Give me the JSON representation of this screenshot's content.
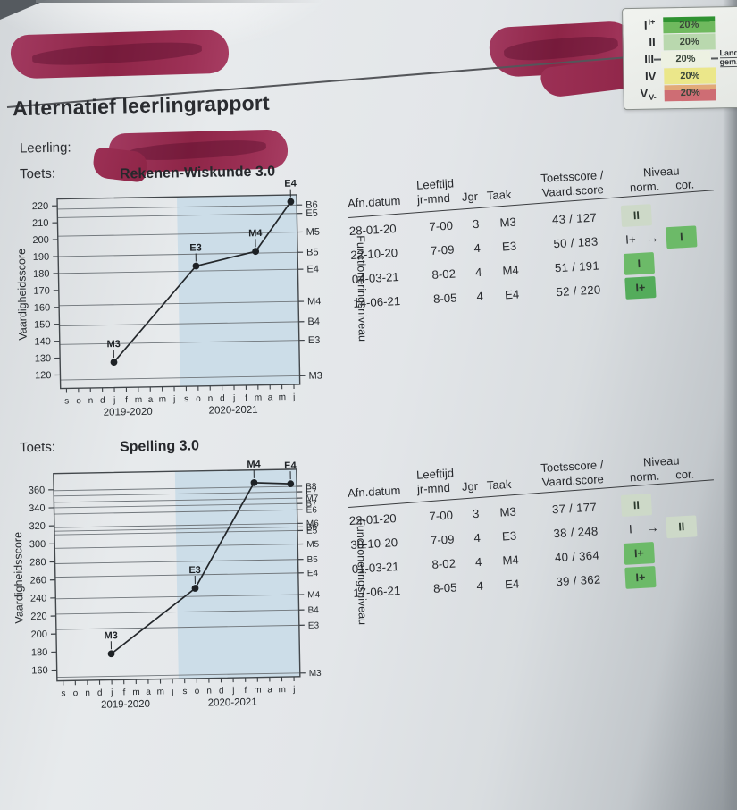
{
  "page": {
    "title": "Alternatief leerlingrapport",
    "leerling_label": "Leerling:",
    "toets_label": "Toets:"
  },
  "glyphs": {
    "cor_arrow": "→"
  },
  "legend": {
    "rows": [
      {
        "label": "I",
        "tag": "I+",
        "tag_pos": "sup",
        "pct": "20%",
        "color": "#6fb95e",
        "color_top": "#2f9231"
      },
      {
        "label": "II",
        "tag": "",
        "tag_pos": "",
        "pct": "20%",
        "color": "#b9d8ae"
      },
      {
        "label": "III",
        "tag": "",
        "tag_pos": "",
        "pct": "20%",
        "color": "#edf1e2",
        "side": [
          "Land",
          "gem."
        ]
      },
      {
        "label": "IV",
        "tag": "",
        "tag_pos": "",
        "pct": "20%",
        "color": "#ebe78a"
      },
      {
        "label": "V",
        "tag": "V-",
        "tag_pos": "sub",
        "pct": "20%",
        "color": "#ce6d74",
        "color_top": "#e2aa79"
      }
    ]
  },
  "table_headers": {
    "afn": "Afn.datum",
    "leeftijd_top": "Leeftijd",
    "leeftijd": "jr-mnd",
    "jgr": "Jgr",
    "taak": "Taak",
    "score_top": "Toetsscore /",
    "score": "Vaard.score",
    "niveau_top": "Niveau",
    "niveau_norm": "norm.",
    "niveau_cor": "cor."
  },
  "badge_colors": {
    "pale": "#cdd9c8",
    "green": "#6cba68",
    "dark": "#54ac5b"
  },
  "tables": [
    {
      "rows": [
        {
          "afn": "28-01-20",
          "leeftijd": "7-00",
          "jgr": "3",
          "taak": "M3",
          "score": "43 / 127",
          "niveau": {
            "badge": "II",
            "style": "pale"
          },
          "cor": null
        },
        {
          "afn": "22-10-20",
          "leeftijd": "7-09",
          "jgr": "4",
          "taak": "E3",
          "score": "50 / 183",
          "niveau": {
            "text": "I+"
          },
          "cor": {
            "badge": "I",
            "style": "green"
          }
        },
        {
          "afn": "04-03-21",
          "leeftijd": "8-02",
          "jgr": "4",
          "taak": "M4",
          "score": "51 / 191",
          "niveau": {
            "badge": "I",
            "style": "green"
          },
          "cor": null
        },
        {
          "afn": "14-06-21",
          "leeftijd": "8-05",
          "jgr": "4",
          "taak": "E4",
          "score": "52 / 220",
          "niveau": {
            "badge": "I+",
            "style": "dark"
          },
          "cor": null
        }
      ]
    },
    {
      "rows": [
        {
          "afn": "22-01-20",
          "leeftijd": "7-00",
          "jgr": "3",
          "taak": "M3",
          "score": "37 / 177",
          "niveau": {
            "badge": "II",
            "style": "pale"
          },
          "cor": null
        },
        {
          "afn": "30-10-20",
          "leeftijd": "7-09",
          "jgr": "4",
          "taak": "E3",
          "score": "38 / 248",
          "niveau": {
            "text": "I"
          },
          "cor": {
            "badge": "II",
            "style": "pale"
          }
        },
        {
          "afn": "01-03-21",
          "leeftijd": "8-02",
          "jgr": "4",
          "taak": "M4",
          "score": "40 / 364",
          "niveau": {
            "badge": "I+",
            "style": "green"
          },
          "cor": null
        },
        {
          "afn": "17-06-21",
          "leeftijd": "8-05",
          "jgr": "4",
          "taak": "E4",
          "score": "39 / 362",
          "niveau": {
            "badge": "I+",
            "style": "green"
          },
          "cor": null
        }
      ]
    }
  ],
  "chart_data": [
    {
      "type": "line",
      "title": "Rekenen-Wiskunde 3.0",
      "ylabel": "Vaardigheidsscore",
      "ylabel_right": "Functioneringsniveau",
      "ylim": [
        112,
        224
      ],
      "yticks": [
        120,
        130,
        140,
        150,
        160,
        170,
        180,
        190,
        200,
        210,
        220
      ],
      "months": [
        "s",
        "o",
        "n",
        "d",
        "j",
        "f",
        "m",
        "a",
        "m",
        "j",
        "s",
        "o",
        "n",
        "d",
        "j",
        "f",
        "m",
        "a",
        "m",
        "j"
      ],
      "years": [
        "2019-2020",
        "2020-2021"
      ],
      "shade_from_month": 10,
      "shade_color": "#ccdde8",
      "level_font": 11,
      "levels": [
        {
          "label": "B6",
          "value": 218
        },
        {
          "label": "E5",
          "value": 213
        },
        {
          "label": "M5",
          "value": 202
        },
        {
          "label": "B5",
          "value": 190
        },
        {
          "label": "E4",
          "value": 180
        },
        {
          "label": "M4",
          "value": 161
        },
        {
          "label": "B4",
          "value": 149
        },
        {
          "label": "E3",
          "value": 138
        },
        {
          "label": "M3",
          "value": 117
        }
      ],
      "points": [
        {
          "label": "M3",
          "month_index": 4,
          "value": 127
        },
        {
          "label": "E3",
          "month_index": 11,
          "value": 183
        },
        {
          "label": "M4",
          "month_index": 16,
          "value": 191
        },
        {
          "label": "E4",
          "month_index": 19,
          "value": 220
        }
      ]
    },
    {
      "type": "line",
      "title": "Spelling 3.0",
      "ylabel": "Vaardigheidsscore",
      "ylabel_right": "Functioneringsniveau",
      "ylim": [
        148,
        378
      ],
      "yticks": [
        160,
        180,
        200,
        220,
        240,
        260,
        280,
        300,
        320,
        340,
        360
      ],
      "months": [
        "s",
        "o",
        "n",
        "d",
        "j",
        "f",
        "m",
        "a",
        "m",
        "j",
        "s",
        "o",
        "n",
        "d",
        "j",
        "f",
        "m",
        "a",
        "m",
        "j"
      ],
      "years": [
        "2019-2020",
        "2020-2021"
      ],
      "shade_from_month": 10,
      "shade_color": "#ccdde8",
      "level_font": 10,
      "levels": [
        {
          "label": "B8",
          "value": 359
        },
        {
          "label": "E7",
          "value": 353
        },
        {
          "label": "M7",
          "value": 346
        },
        {
          "label": "B7",
          "value": 340
        },
        {
          "label": "E6",
          "value": 333
        },
        {
          "label": "M6",
          "value": 318
        },
        {
          "label": "B6",
          "value": 314
        },
        {
          "label": "E5",
          "value": 310
        },
        {
          "label": "M5",
          "value": 295
        },
        {
          "label": "B5",
          "value": 278
        },
        {
          "label": "E4",
          "value": 263
        },
        {
          "label": "M4",
          "value": 239
        },
        {
          "label": "B4",
          "value": 222
        },
        {
          "label": "E3",
          "value": 205
        },
        {
          "label": "M3",
          "value": 152
        }
      ],
      "points": [
        {
          "label": "M3",
          "month_index": 4,
          "value": 177
        },
        {
          "label": "E3",
          "month_index": 11,
          "value": 248
        },
        {
          "label": "M4",
          "month_index": 16,
          "value": 364
        },
        {
          "label": "E4",
          "month_index": 19,
          "value": 362
        }
      ]
    }
  ]
}
